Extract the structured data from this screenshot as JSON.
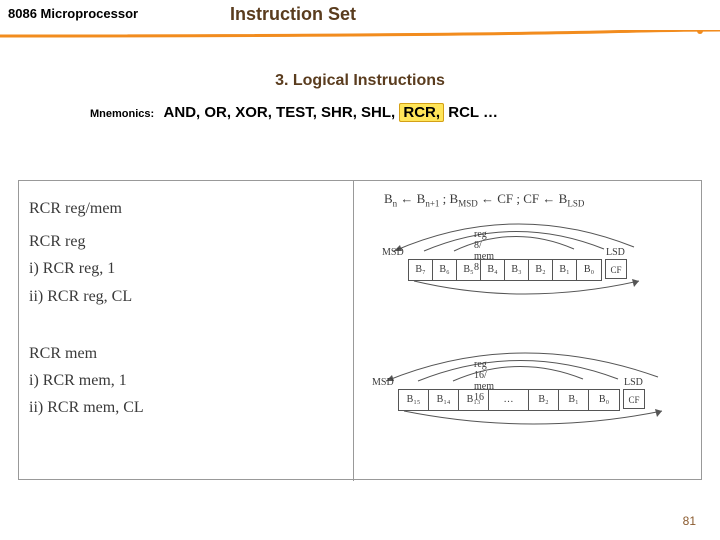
{
  "header": {
    "chip": "8086 Microprocessor",
    "title": "Instruction Set",
    "rule_color_main": "#f28c1e",
    "rule_color_shadow": "#a8a8a8"
  },
  "section": {
    "title": "3. Logical Instructions"
  },
  "mnemonics": {
    "label": "Mnemonics:",
    "pre": "AND, OR, XOR, TEST, SHR, SHL, ",
    "highlight": "RCR,",
    "post": " RCL …"
  },
  "left": {
    "l1": "RCR reg/mem",
    "l2": "RCR reg",
    "l3": "i) RCR reg, 1",
    "l4": "ii) RCR reg, CL",
    "l5": "RCR mem",
    "l6": "i) RCR mem, 1",
    "l7": "ii) RCR mem, CL"
  },
  "right": {
    "formula_html": "B<span class='sub'>n</span> ← B<span class='sub'>n+1</span> ; B<span class='sub'>MSD</span> ← CF ; CF ← B<span class='sub'>LSD</span>",
    "diag8": {
      "msd": "MSD",
      "lsd": "LSD",
      "caption": "reg 8/ mem 8",
      "bits": [
        "B₇",
        "B₆",
        "B₅",
        "B₄",
        "B₃",
        "B₂",
        "B₁",
        "B₀"
      ],
      "cf": "CF"
    },
    "diag16": {
      "msd": "MSD",
      "lsd": "LSD",
      "caption": "reg 16/ mem 16",
      "bits": [
        "B₁₅",
        "B₁₄",
        "B₁₃",
        "…",
        "B₂",
        "B₁",
        "B₀"
      ],
      "cf": "CF"
    }
  },
  "page": "81",
  "colors": {
    "brown": "#5a3c1e",
    "border": "#999999",
    "ink": "#3a3a3a"
  }
}
